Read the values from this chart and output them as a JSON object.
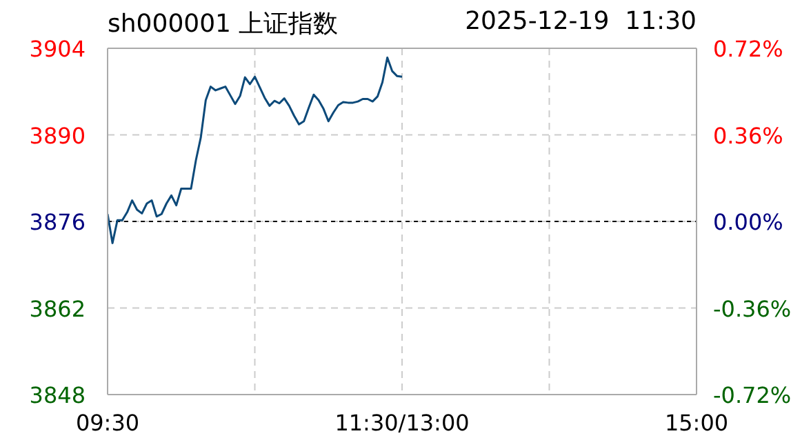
{
  "chart_data": {
    "type": "line",
    "title": "sh000001 上证指数",
    "subtitle": "2025-12-19  11:30",
    "categories": [
      "09:30",
      null,
      null,
      null,
      null,
      null,
      null,
      null,
      null,
      null,
      null,
      null,
      null,
      null,
      null,
      null,
      null,
      null,
      null,
      null,
      null,
      null,
      null,
      null,
      null,
      null,
      null,
      null,
      null,
      null,
      null,
      null,
      null,
      null,
      null,
      null,
      null,
      null,
      null,
      null,
      null,
      null,
      null,
      null,
      null,
      null,
      null,
      null,
      null,
      null,
      null,
      null,
      null,
      null,
      null,
      null,
      null,
      null,
      null,
      null,
      "11:30/13:00",
      null,
      null,
      null,
      null,
      null,
      null,
      null,
      null,
      null,
      null,
      null,
      null,
      null,
      null,
      null,
      null,
      null,
      null,
      null,
      null,
      null,
      null,
      null,
      null,
      null,
      null,
      null,
      null,
      null,
      null,
      null,
      null,
      null,
      null,
      null,
      null,
      null,
      null,
      null,
      null,
      null,
      null,
      null,
      null,
      null,
      null,
      null,
      null,
      null,
      null,
      null,
      null,
      null,
      null,
      null,
      null,
      null,
      null,
      null,
      "15:00"
    ],
    "series": [
      {
        "color": "#0d4a7a",
        "values": [
          3877.2,
          3872.5,
          3876.2,
          3876.2,
          3877.5,
          3879.4,
          3877.9,
          3877.3,
          3878.9,
          3879.4,
          3876.8,
          3877.2,
          3878.9,
          3880.2,
          3878.6,
          3881.3,
          3881.3,
          3881.3,
          3885.9,
          3889.6,
          3895.6,
          3897.8,
          3897.2,
          3897.5,
          3897.8,
          3896.4,
          3895.0,
          3896.3,
          3899.3,
          3898.2,
          3899.4,
          3897.7,
          3896.0,
          3894.7,
          3895.5,
          3895.1,
          3895.9,
          3894.7,
          3893.1,
          3891.7,
          3892.2,
          3894.4,
          3896.5,
          3895.6,
          3894.2,
          3892.2,
          3893.6,
          3894.8,
          3895.3,
          3895.2,
          3895.2,
          3895.4,
          3895.8,
          3895.8,
          3895.4,
          3896.2,
          3898.5,
          3902.5,
          3900.3,
          3899.5,
          3899.4,
          null,
          null,
          null,
          null,
          null,
          null,
          null,
          null,
          null,
          null,
          null,
          null,
          null,
          null,
          null,
          null,
          null,
          null,
          null,
          null,
          null,
          null,
          null,
          null,
          null,
          null,
          null,
          null,
          null,
          null,
          null,
          null,
          null,
          null,
          null,
          null,
          null,
          null,
          null,
          null,
          null,
          null,
          null,
          null,
          null,
          null,
          null,
          null,
          null,
          null,
          null,
          null,
          null,
          null,
          null,
          null,
          null,
          null,
          null,
          null
        ]
      }
    ],
    "ylim": [
      3848,
      3904
    ],
    "yticks": [
      3848,
      3862,
      3876,
      3890,
      3904
    ],
    "y2lim": [
      -0.72,
      0.72
    ],
    "y2ticks": [
      {
        "value": -0.72,
        "label": "-0.72%"
      },
      {
        "value": -0.36,
        "label": "-0.36%"
      },
      {
        "value": 0,
        "label": "0.00%"
      },
      {
        "value": 0.36,
        "label": "0.36%"
      },
      {
        "value": 0.72,
        "label": "0.72%"
      }
    ],
    "ref_lines": [
      {
        "axis": "y",
        "value": 3876,
        "color": "#000000",
        "line_style": "dashed"
      }
    ],
    "grid": true,
    "legend": false,
    "marker": "none",
    "line_style": "solid"
  }
}
